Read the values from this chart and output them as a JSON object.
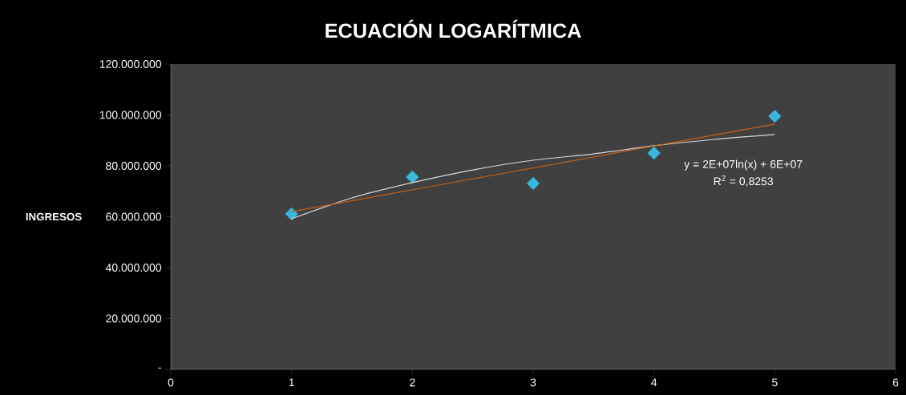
{
  "chart_data": {
    "type": "scatter",
    "title": "ECUACIÓN LOGARÍTMICA",
    "ylabel": "INGRESOS",
    "xlim": [
      0,
      6
    ],
    "xticks": [
      0,
      1,
      2,
      3,
      4,
      5,
      6
    ],
    "ylim": [
      0,
      120000000
    ],
    "yticks": [
      {
        "value": 0,
        "label": "-"
      },
      {
        "value": 20000000,
        "label": "20.000.000"
      },
      {
        "value": 40000000,
        "label": "40.000.000"
      },
      {
        "value": 60000000,
        "label": "60.000.000"
      },
      {
        "value": 80000000,
        "label": "80.000.000"
      },
      {
        "value": 100000000,
        "label": "100.000.000"
      },
      {
        "value": 120000000,
        "label": "120.000.000"
      }
    ],
    "series": [
      {
        "type": "line",
        "marker": "none",
        "color": "#d9d9d9",
        "x": [
          1,
          1.5,
          2,
          2.5,
          3,
          3.5,
          4,
          4.5,
          5
        ],
        "values": [
          59200000,
          67400000,
          73400000,
          78400000,
          82200000,
          84700000,
          87900000,
          90400000,
          92300000
        ]
      },
      {
        "type": "line",
        "marker": "none",
        "color": "#c0601a",
        "x": [
          1,
          5
        ],
        "values": [
          62000000,
          96400000
        ]
      },
      {
        "marker": "diamond",
        "color": "#3ab8dc",
        "x": [
          1,
          2,
          3,
          4,
          5
        ],
        "values": [
          61100000,
          75600000,
          73100000,
          85000000,
          99500000
        ]
      }
    ],
    "annotations": [
      "y = 2E+07ln(x) + 6E+07",
      "R$^{2}$ = 0,8253"
    ]
  }
}
